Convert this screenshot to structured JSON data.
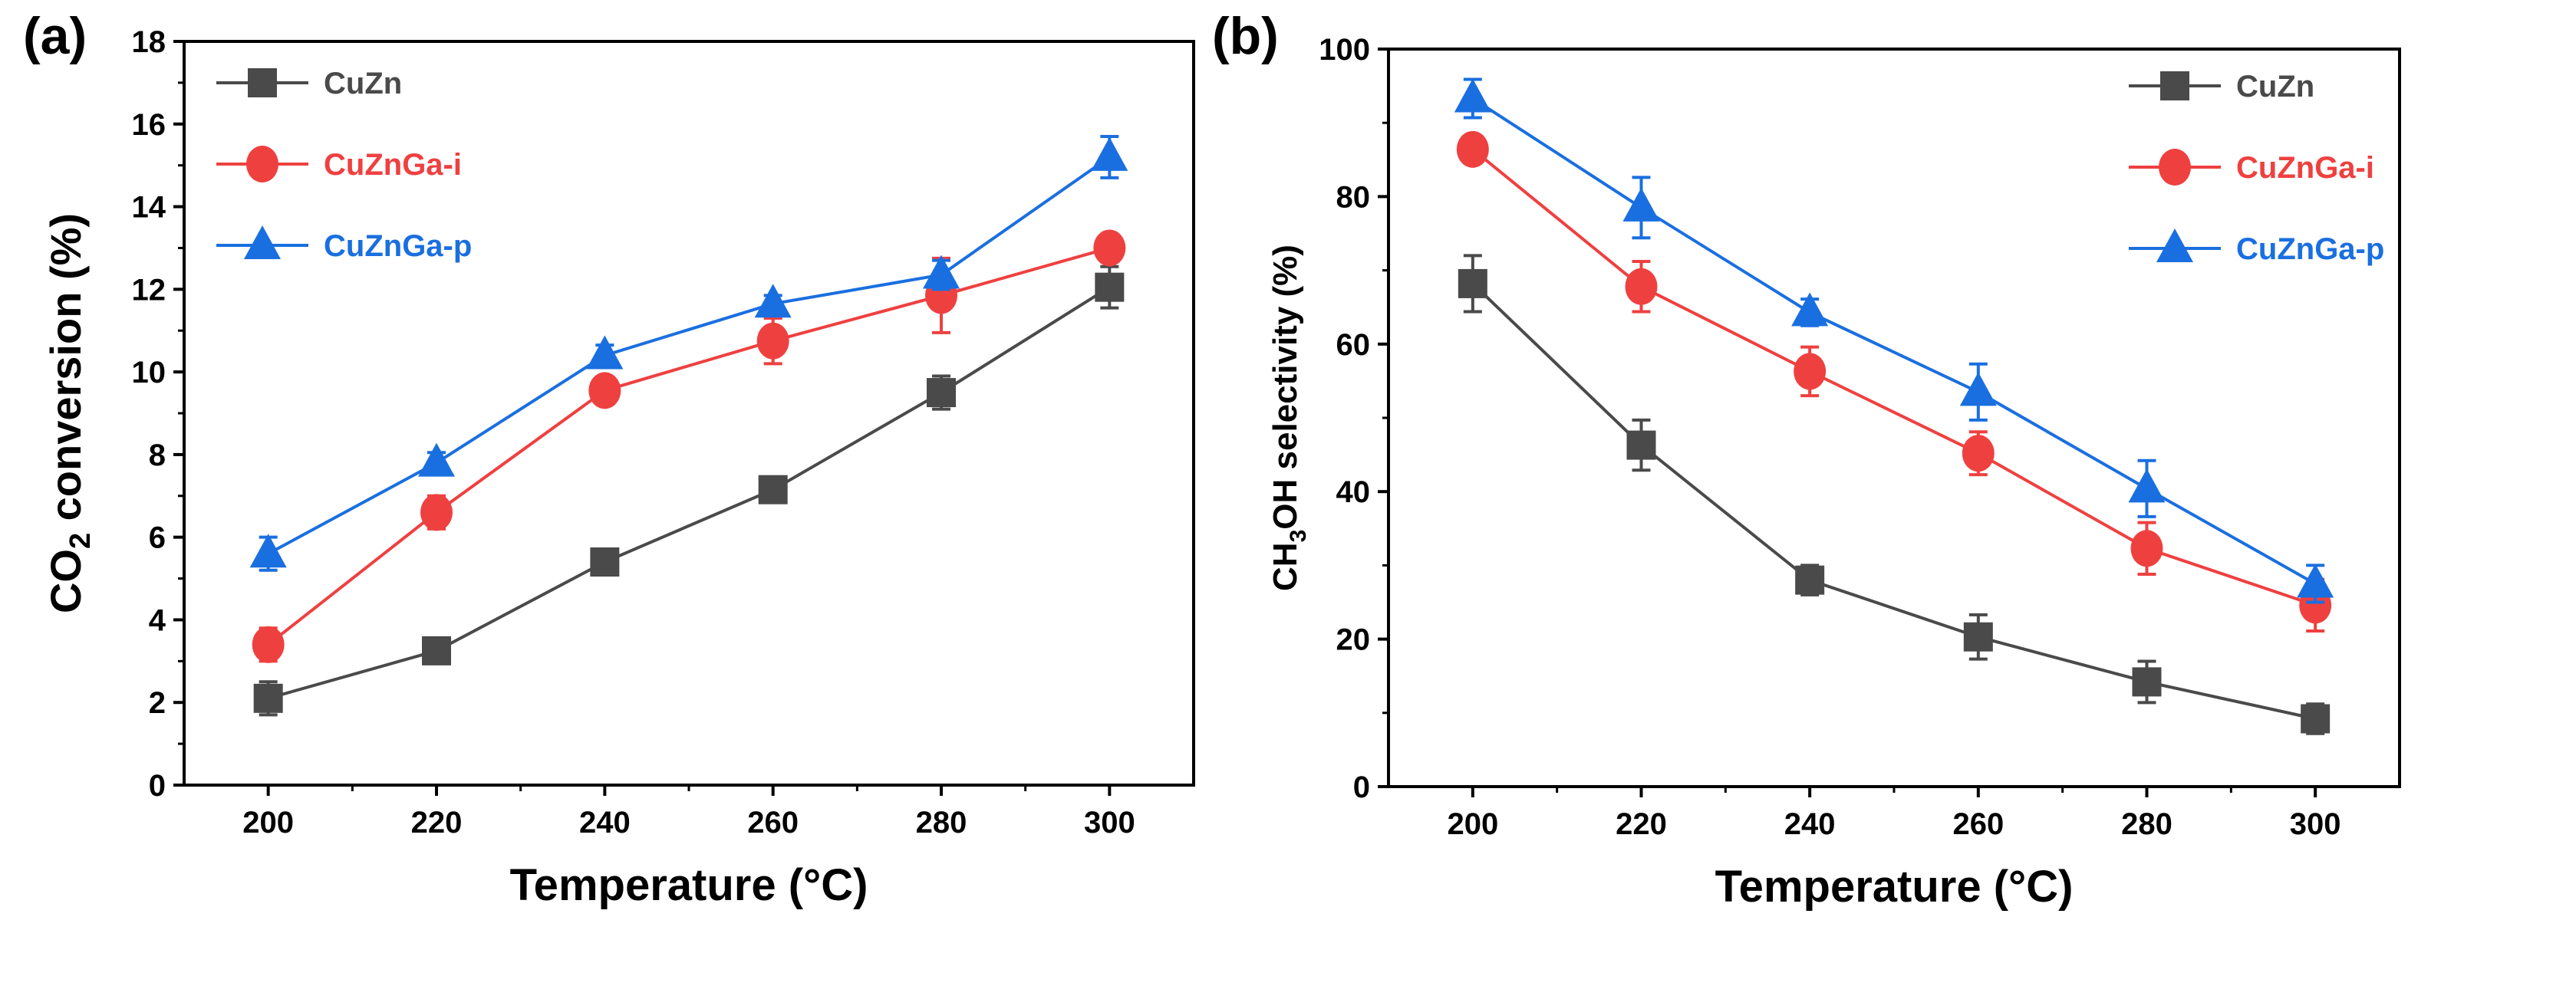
{
  "chart_data": [
    {
      "type": "line",
      "panel_label": "(a)",
      "xlabel": "Temperature (°C)",
      "ylabel_parts": [
        "CO",
        "2",
        " conversion (%)"
      ],
      "xlim": [
        190,
        310
      ],
      "ylim": [
        0,
        18
      ],
      "xticks": [
        200,
        220,
        240,
        260,
        280,
        300
      ],
      "yticks": [
        0,
        2,
        4,
        6,
        8,
        10,
        12,
        14,
        16,
        18
      ],
      "legend_position": "top-left",
      "x": [
        200,
        220,
        240,
        260,
        280,
        300
      ],
      "series": [
        {
          "name": "CuZn",
          "color": "#4a4a4a",
          "marker": "square",
          "values": [
            2.1,
            3.25,
            5.4,
            7.15,
            9.5,
            12.05
          ],
          "errors": [
            0.4,
            0.12,
            0.2,
            0.1,
            0.4,
            0.5
          ]
        },
        {
          "name": "CuZnGa-i",
          "color": "#ef4040",
          "marker": "circle",
          "values": [
            3.4,
            6.6,
            9.55,
            10.75,
            11.85,
            13.0
          ],
          "errors": [
            0.4,
            0.4,
            0.25,
            0.55,
            0.9,
            0.3
          ]
        },
        {
          "name": "CuZnGa-p",
          "color": "#1a6fe0",
          "marker": "triangle",
          "values": [
            5.6,
            7.8,
            10.4,
            11.65,
            12.35,
            15.2
          ],
          "errors": [
            0.4,
            0.25,
            0.25,
            0.2,
            0.35,
            0.5
          ]
        }
      ]
    },
    {
      "type": "line",
      "panel_label": "(b)",
      "xlabel": "Temperature (°C)",
      "ylabel_parts": [
        "CH",
        "3",
        "OH selectivity (%)"
      ],
      "xlim": [
        190,
        310
      ],
      "ylim": [
        0,
        100
      ],
      "xticks": [
        200,
        220,
        240,
        260,
        280,
        300
      ],
      "yticks": [
        0,
        20,
        40,
        60,
        80,
        100
      ],
      "legend_position": "top-right",
      "x": [
        200,
        220,
        240,
        260,
        280,
        300
      ],
      "series": [
        {
          "name": "CuZn",
          "color": "#4a4a4a",
          "marker": "square",
          "values": [
            68.2,
            46.3,
            28.0,
            20.3,
            14.2,
            9.2
          ],
          "errors": [
            3.8,
            3.4,
            2.0,
            3.0,
            2.8,
            2.0
          ]
        },
        {
          "name": "CuZnGa-i",
          "color": "#ef4040",
          "marker": "circle",
          "values": [
            86.4,
            67.8,
            56.3,
            45.2,
            32.3,
            24.6
          ],
          "errors": [
            1.8,
            3.4,
            3.3,
            2.9,
            3.5,
            3.5
          ]
        },
        {
          "name": "CuZnGa-p",
          "color": "#1a6fe0",
          "marker": "triangle",
          "values": [
            93.3,
            78.5,
            64.3,
            53.5,
            40.4,
            27.5
          ],
          "errors": [
            2.6,
            4.1,
            1.8,
            3.8,
            3.8,
            2.5
          ]
        }
      ]
    }
  ]
}
